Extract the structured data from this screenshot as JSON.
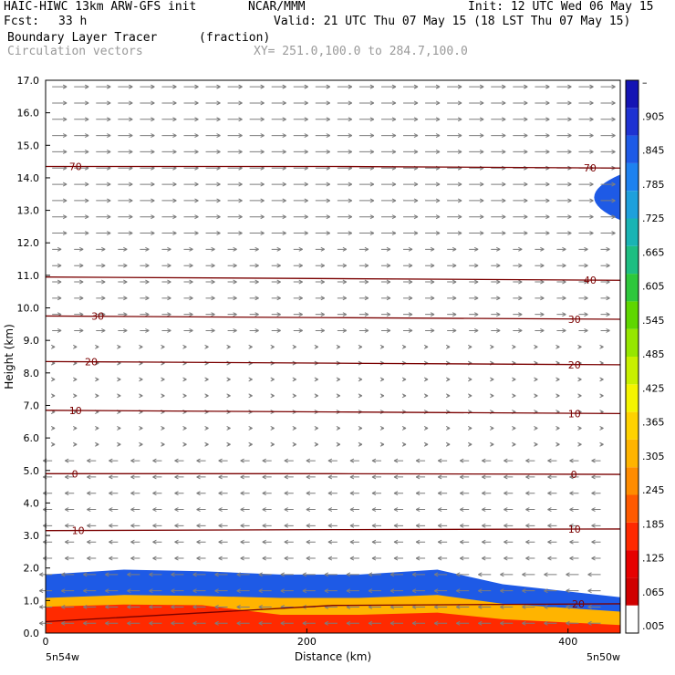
{
  "header": {
    "model": "HAIC-HIWC 13km ARW-GFS init",
    "org": "NCAR/MMM",
    "init": "Init: 12 UTC Wed 06 May 15",
    "fcst_label": "Fcst:",
    "fcst_value": "33 h",
    "valid": "Valid: 21 UTC Thu 07 May 15 (18 LST Thu 07 May 15)",
    "field_name": "Boundary Layer Tracer",
    "field_units": "(fraction)",
    "vector_name": "Circulation vectors",
    "xy_range": "XY= 251.0,100.0 to 284.7,100.0"
  },
  "colors": {
    "contour": "#7a0000",
    "vector": "#7d7d7d",
    "colorbar": [
      "#ffffff",
      "#d00000",
      "#e60000",
      "#ff2a00",
      "#ff5a00",
      "#ff8c00",
      "#ffb400",
      "#ffd200",
      "#f4f400",
      "#c8f000",
      "#96e600",
      "#5fd700",
      "#2ec83c",
      "#1ebe82",
      "#19b4b4",
      "#1ea0dc",
      "#1e82f0",
      "#1e5ae6",
      "#1e32d2",
      "#1414b4"
    ]
  },
  "chart_data": {
    "type": "cross-section",
    "title": "Boundary Layer Tracer",
    "xlabel": "Distance (km)",
    "ylabel": "Height (km)",
    "xlim": [
      0,
      440
    ],
    "ylim": [
      0.0,
      17.0
    ],
    "x_ticks": [
      0,
      200,
      400
    ],
    "y_ticks": [
      "0.0",
      "1.0",
      "2.0",
      "3.0",
      "4.0",
      "5.0",
      "6.0",
      "7.0",
      "8.0",
      "9.0",
      "10.0",
      "11.0",
      "12.0",
      "13.0",
      "14.0",
      "15.0",
      "16.0",
      "17.0"
    ],
    "x_endpoint_labels": [
      "5n54w",
      "5n50w"
    ],
    "colorbar_labels": [
      ".005",
      ".065",
      ".125",
      ".185",
      ".245",
      ".305",
      ".365",
      ".425",
      ".485",
      ".545",
      ".605",
      ".665",
      ".725",
      ".785",
      ".845",
      ".905",
      "–"
    ],
    "contours": [
      {
        "label": "70",
        "heights": [
          14.35,
          14.35,
          14.3
        ]
      },
      {
        "label": "40",
        "heights": [
          10.95,
          10.9,
          10.85
        ]
      },
      {
        "label": "30",
        "heights": [
          9.75,
          9.7,
          9.65
        ]
      },
      {
        "label": "20",
        "heights": [
          8.35,
          8.3,
          8.25
        ]
      },
      {
        "label": "10",
        "heights": [
          6.85,
          6.8,
          6.75
        ]
      },
      {
        "label": "0",
        "heights": [
          4.9,
          4.9,
          4.88
        ]
      },
      {
        "label": "10",
        "heights": [
          3.15,
          3.18,
          3.2
        ]
      },
      {
        "label": "20",
        "heights": [
          0.35,
          0.85,
          0.9
        ]
      }
    ],
    "contour_label_positions": [
      {
        "text": "70",
        "x": 18,
        "y": 14.35
      },
      {
        "text": "70",
        "x": 412,
        "y": 14.3
      },
      {
        "text": "40",
        "x": 412,
        "y": 10.85
      },
      {
        "text": "30",
        "x": 35,
        "y": 9.75
      },
      {
        "text": "30",
        "x": 400,
        "y": 9.65
      },
      {
        "text": "20",
        "x": 30,
        "y": 8.35
      },
      {
        "text": "20",
        "x": 400,
        "y": 8.25
      },
      {
        "text": "10",
        "x": 18,
        "y": 6.85
      },
      {
        "text": "10",
        "x": 400,
        "y": 6.75
      },
      {
        "text": "0",
        "x": 20,
        "y": 4.9
      },
      {
        "text": "0",
        "x": 402,
        "y": 4.88
      },
      {
        "text": "10",
        "x": 20,
        "y": 3.15
      },
      {
        "text": "10",
        "x": 400,
        "y": 3.2
      },
      {
        "text": "20",
        "x": 403,
        "y": 0.9
      }
    ],
    "boundary_layer_top_km": [
      [
        0,
        1.8
      ],
      [
        60,
        1.95
      ],
      [
        120,
        1.9
      ],
      [
        180,
        1.8
      ],
      [
        240,
        1.8
      ],
      [
        300,
        1.95
      ],
      [
        350,
        1.5
      ],
      [
        440,
        1.1
      ]
    ],
    "upper_tracer_patch": {
      "x_start": 400,
      "height_range": [
        12.7,
        14.1
      ]
    }
  }
}
